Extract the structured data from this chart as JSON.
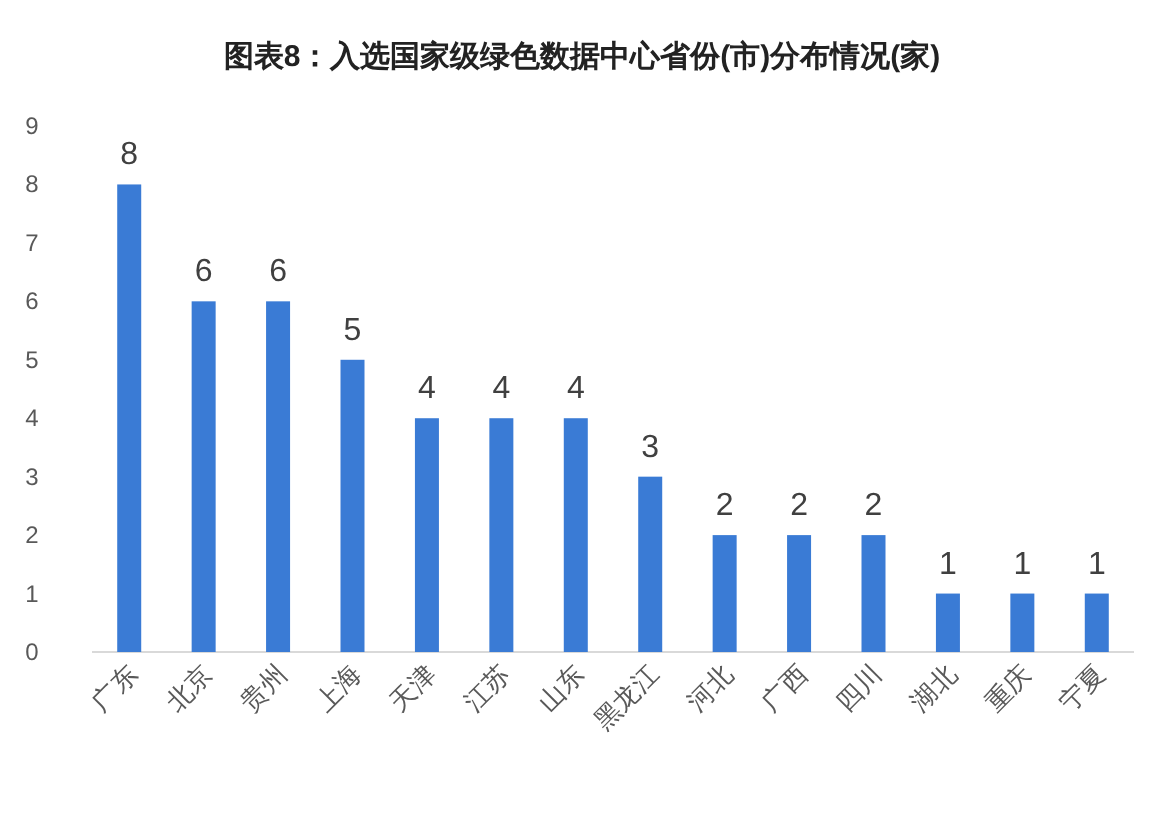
{
  "chart_data": {
    "type": "bar",
    "title": "图表8：入选国家级绿色数据中心省份(市)分布情况(家)",
    "categories": [
      "广东",
      "北京",
      "贵州",
      "上海",
      "天津",
      "江苏",
      "山东",
      "黑龙江",
      "河北",
      "广西",
      "四川",
      "湖北",
      "重庆",
      "宁夏"
    ],
    "values": [
      8,
      6,
      6,
      5,
      4,
      4,
      4,
      3,
      2,
      2,
      2,
      1,
      1,
      1
    ],
    "color": "#3a7bd5",
    "ylim": [
      0,
      9
    ],
    "yticks": [
      0,
      1,
      2,
      3,
      4,
      5,
      6,
      7,
      8,
      9
    ],
    "data_labels": true
  }
}
